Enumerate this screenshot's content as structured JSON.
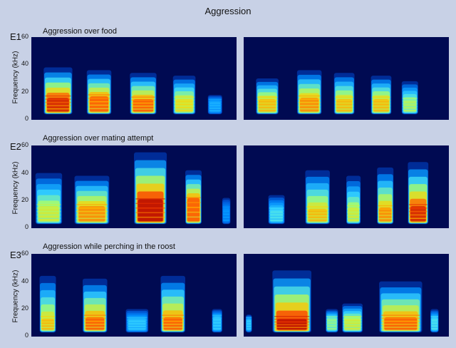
{
  "figure": {
    "title": "Aggression"
  },
  "chart_data": {
    "type": "heatmap",
    "title": "Aggression",
    "ylabel": "Frequency (kHz)",
    "ylim": [
      0,
      60
    ],
    "yticks": [
      "60",
      "40",
      "20",
      "0"
    ],
    "colormap": [
      "#000a52",
      "#0030c0",
      "#0090ff",
      "#40e0ff",
      "#b0ff60",
      "#ffd000",
      "#ff4000",
      "#b00000"
    ],
    "rows": [
      {
        "label": "E1",
        "title": "Aggression over food",
        "panels": [
          {
            "name": "left",
            "calls": [
              {
                "start": 0.06,
                "end": 0.2,
                "low": 4,
                "peak": 12,
                "high": 38,
                "intensity": 0.95
              },
              {
                "start": 0.27,
                "end": 0.39,
                "low": 4,
                "peak": 13,
                "high": 36,
                "intensity": 0.85
              },
              {
                "start": 0.48,
                "end": 0.61,
                "low": 4,
                "peak": 11,
                "high": 34,
                "intensity": 0.85
              },
              {
                "start": 0.69,
                "end": 0.8,
                "low": 4,
                "peak": 11,
                "high": 32,
                "intensity": 0.7
              },
              {
                "start": 0.86,
                "end": 0.93,
                "low": 4,
                "peak": 9,
                "high": 18,
                "intensity": 0.35
              }
            ]
          },
          {
            "name": "right",
            "calls": [
              {
                "start": 0.06,
                "end": 0.17,
                "low": 4,
                "peak": 11,
                "high": 30,
                "intensity": 0.75
              },
              {
                "start": 0.26,
                "end": 0.38,
                "low": 4,
                "peak": 12,
                "high": 36,
                "intensity": 0.8
              },
              {
                "start": 0.44,
                "end": 0.54,
                "low": 4,
                "peak": 11,
                "high": 34,
                "intensity": 0.75
              },
              {
                "start": 0.62,
                "end": 0.72,
                "low": 4,
                "peak": 11,
                "high": 32,
                "intensity": 0.75
              },
              {
                "start": 0.77,
                "end": 0.85,
                "low": 4,
                "peak": 10,
                "high": 28,
                "intensity": 0.6
              }
            ]
          }
        ]
      },
      {
        "label": "E2",
        "title": "Aggression over mating attempt",
        "panels": [
          {
            "name": "left",
            "calls": [
              {
                "start": 0.02,
                "end": 0.15,
                "low": 3,
                "peak": 12,
                "high": 40,
                "intensity": 0.65
              },
              {
                "start": 0.21,
                "end": 0.38,
                "low": 3,
                "peak": 12,
                "high": 38,
                "intensity": 0.8
              },
              {
                "start": 0.5,
                "end": 0.66,
                "low": 3,
                "peak": 17,
                "high": 55,
                "intensity": 1.0
              },
              {
                "start": 0.75,
                "end": 0.83,
                "low": 3,
                "peak": 18,
                "high": 42,
                "intensity": 0.85
              },
              {
                "start": 0.93,
                "end": 0.97,
                "low": 3,
                "peak": 10,
                "high": 22,
                "intensity": 0.3
              }
            ]
          },
          {
            "name": "right",
            "calls": [
              {
                "start": 0.12,
                "end": 0.2,
                "low": 3,
                "peak": 9,
                "high": 24,
                "intensity": 0.45
              },
              {
                "start": 0.3,
                "end": 0.42,
                "low": 3,
                "peak": 10,
                "high": 42,
                "intensity": 0.75
              },
              {
                "start": 0.5,
                "end": 0.57,
                "low": 3,
                "peak": 11,
                "high": 38,
                "intensity": 0.65
              },
              {
                "start": 0.65,
                "end": 0.73,
                "low": 3,
                "peak": 11,
                "high": 44,
                "intensity": 0.8
              },
              {
                "start": 0.8,
                "end": 0.9,
                "low": 3,
                "peak": 12,
                "high": 48,
                "intensity": 0.95
              }
            ]
          }
        ]
      },
      {
        "label": "E3",
        "title": "Aggression while perching in the roost",
        "panels": [
          {
            "name": "left",
            "calls": [
              {
                "start": 0.04,
                "end": 0.12,
                "low": 3,
                "peak": 9,
                "high": 44,
                "intensity": 0.75
              },
              {
                "start": 0.25,
                "end": 0.37,
                "low": 3,
                "peak": 10,
                "high": 42,
                "intensity": 0.85
              },
              {
                "start": 0.46,
                "end": 0.57,
                "low": 3,
                "peak": 8,
                "high": 20,
                "intensity": 0.4
              },
              {
                "start": 0.63,
                "end": 0.75,
                "low": 3,
                "peak": 10,
                "high": 44,
                "intensity": 0.85
              },
              {
                "start": 0.88,
                "end": 0.93,
                "low": 3,
                "peak": 10,
                "high": 20,
                "intensity": 0.4
              }
            ]
          },
          {
            "name": "right",
            "calls": [
              {
                "start": 0.01,
                "end": 0.04,
                "low": 3,
                "peak": 8,
                "high": 16,
                "intensity": 0.4
              },
              {
                "start": 0.14,
                "end": 0.33,
                "low": 3,
                "peak": 9,
                "high": 48,
                "intensity": 1.0
              },
              {
                "start": 0.4,
                "end": 0.46,
                "low": 3,
                "peak": 9,
                "high": 20,
                "intensity": 0.55
              },
              {
                "start": 0.48,
                "end": 0.58,
                "low": 3,
                "peak": 9,
                "high": 24,
                "intensity": 0.65
              },
              {
                "start": 0.66,
                "end": 0.87,
                "low": 3,
                "peak": 10,
                "high": 40,
                "intensity": 0.85
              },
              {
                "start": 0.91,
                "end": 0.95,
                "low": 3,
                "peak": 9,
                "high": 20,
                "intensity": 0.45
              }
            ]
          }
        ]
      }
    ]
  }
}
